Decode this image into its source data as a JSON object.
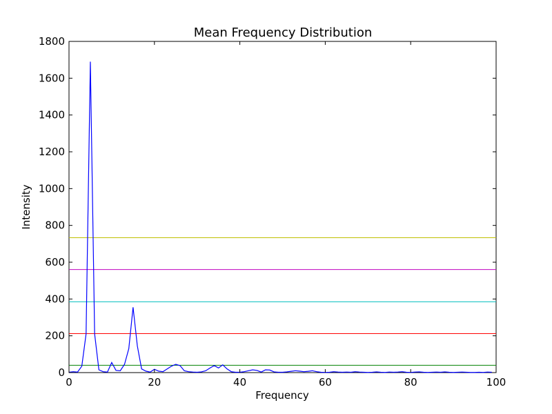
{
  "chart_data": {
    "type": "line",
    "title": "Mean Frequency Distribution",
    "xlabel": "Frequency",
    "ylabel": "Intensity",
    "xlim": [
      0,
      100
    ],
    "ylim": [
      0,
      1800
    ],
    "xticks": [
      0,
      20,
      40,
      60,
      80,
      100
    ],
    "yticks": [
      0,
      200,
      400,
      600,
      800,
      1000,
      1200,
      1400,
      1600,
      1800
    ],
    "grid": false,
    "series": [
      {
        "color": "#0000ff",
        "values": [
          2,
          5,
          3,
          35,
          210,
          1690,
          210,
          15,
          5,
          3,
          55,
          12,
          10,
          45,
          130,
          355,
          145,
          20,
          8,
          3,
          18,
          8,
          5,
          20,
          35,
          45,
          38,
          10,
          5,
          3,
          2,
          4,
          10,
          25,
          38,
          25,
          42,
          20,
          5,
          2,
          2,
          5,
          10,
          15,
          12,
          3,
          15,
          14,
          4,
          2,
          2,
          4,
          7,
          10,
          8,
          5,
          7,
          10,
          5,
          2,
          1,
          2,
          5,
          3,
          2,
          3,
          2,
          5,
          3,
          2,
          1,
          2,
          4,
          2,
          1,
          3,
          2,
          3,
          5,
          2,
          1,
          3,
          4,
          2,
          1,
          2,
          3,
          2,
          4,
          2,
          1,
          2,
          3,
          2,
          1,
          1,
          2,
          1,
          3,
          2
        ]
      }
    ],
    "hlines": [
      {
        "y": 40,
        "color": "#008000"
      },
      {
        "y": 212,
        "color": "#ff0000"
      },
      {
        "y": 385,
        "color": "#00bfbf"
      },
      {
        "y": 560,
        "color": "#bf00bf"
      },
      {
        "y": 733,
        "color": "#bfbf00"
      }
    ]
  }
}
